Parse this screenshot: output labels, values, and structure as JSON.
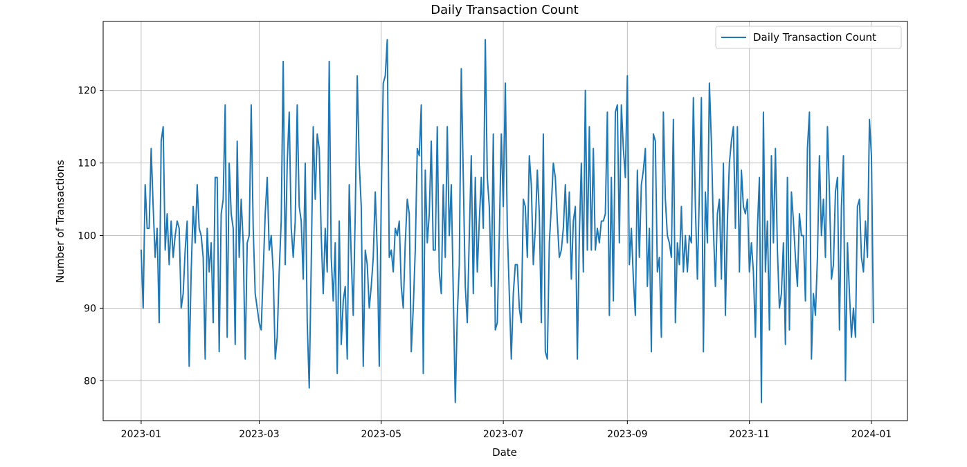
{
  "chart_data": {
    "type": "line",
    "title": "Daily Transaction Count",
    "xlabel": "Date",
    "ylabel": "Number of Transactions",
    "x_start": "2023-01-01",
    "x_end": "2023-12-31",
    "xlim": [
      "2022-12-13",
      "2024-01-19"
    ],
    "ylim": [
      74.5,
      129.5
    ],
    "x_ticks": [
      "2023-01",
      "2023-03",
      "2023-05",
      "2023-07",
      "2023-09",
      "2023-11",
      "2024-01"
    ],
    "x_tick_dates": [
      "2023-01-01",
      "2023-03-01",
      "2023-05-01",
      "2023-07-01",
      "2023-09-01",
      "2023-11-01",
      "2024-01-01"
    ],
    "y_ticks": [
      80,
      90,
      100,
      110,
      120
    ],
    "grid": true,
    "legend": {
      "position": "top-right"
    },
    "series": [
      {
        "name": "Daily Transaction Count",
        "color": "#1f77b4",
        "values": [
          98,
          90,
          107,
          101,
          101,
          112,
          104,
          97,
          101,
          88,
          113,
          115,
          98,
          103,
          96,
          102,
          97,
          100,
          102,
          101,
          90,
          92,
          98,
          102,
          82,
          95,
          104,
          99,
          107,
          101,
          100,
          97,
          83,
          101,
          95,
          99,
          88,
          108,
          108,
          84,
          103,
          105,
          118,
          86,
          110,
          103,
          101,
          85,
          113,
          97,
          105,
          99,
          83,
          99,
          100,
          118,
          101,
          92,
          90,
          88,
          87,
          95,
          103,
          108,
          98,
          100,
          95,
          83,
          86,
          95,
          102,
          124,
          96,
          110,
          117,
          101,
          97,
          102,
          118,
          104,
          102,
          94,
          110,
          88,
          79,
          96,
          115,
          105,
          114,
          112,
          100,
          92,
          101,
          95,
          124,
          97,
          91,
          99,
          81,
          102,
          85,
          91,
          93,
          83,
          107,
          97,
          89,
          103,
          122,
          110,
          104,
          82,
          98,
          96,
          90,
          93,
          97,
          106,
          98,
          82,
          105,
          121,
          122,
          127,
          97,
          98,
          95,
          101,
          100,
          102,
          93,
          90,
          99,
          105,
          103,
          84,
          90,
          98,
          112,
          111,
          118,
          81,
          109,
          99,
          103,
          113,
          98,
          98,
          115,
          95,
          92,
          107,
          97,
          115,
          100,
          107,
          92,
          77,
          89,
          96,
          123,
          108,
          93,
          88,
          100,
          111,
          92,
          108,
          95,
          102,
          108,
          101,
          127,
          108,
          104,
          93,
          114,
          87,
          88,
          100,
          114,
          104,
          121,
          101,
          92,
          83,
          92,
          96,
          96,
          90,
          88,
          105,
          104,
          97,
          111,
          107,
          96,
          101,
          109,
          103,
          88,
          114,
          84,
          83,
          99,
          104,
          110,
          108,
          102,
          97,
          98,
          101,
          107,
          99,
          106,
          94,
          102,
          104,
          83,
          100,
          110,
          95,
          120,
          98,
          115,
          98,
          112,
          98,
          101,
          99,
          102,
          102,
          103,
          117,
          89,
          108,
          91,
          117,
          118,
          99,
          118,
          112,
          108,
          122,
          96,
          101,
          94,
          89,
          109,
          97,
          107,
          109,
          112,
          93,
          101,
          84,
          114,
          113,
          95,
          97,
          86,
          117,
          105,
          100,
          99,
          97,
          116,
          88,
          99,
          96,
          104,
          95,
          100,
          95,
          100,
          99,
          119,
          104,
          94,
          106,
          119,
          84,
          106,
          99,
          121,
          113,
          101,
          93,
          103,
          105,
          94,
          110,
          89,
          102,
          110,
          113,
          115,
          101,
          115,
          95,
          109,
          104,
          103,
          105,
          95,
          99,
          95,
          86,
          101,
          108,
          77,
          117,
          95,
          102,
          87,
          111,
          99,
          112,
          98,
          90,
          92,
          99,
          85,
          108,
          87,
          106,
          102,
          97,
          93,
          103,
          100,
          100,
          91,
          112,
          117,
          83,
          92,
          89,
          97,
          111,
          100,
          105,
          97,
          115,
          106,
          94,
          96,
          106,
          108,
          87,
          104,
          111,
          80,
          99,
          92,
          86,
          90,
          86,
          104,
          105,
          97,
          95,
          102,
          97,
          116,
          111,
          88
        ]
      }
    ]
  }
}
